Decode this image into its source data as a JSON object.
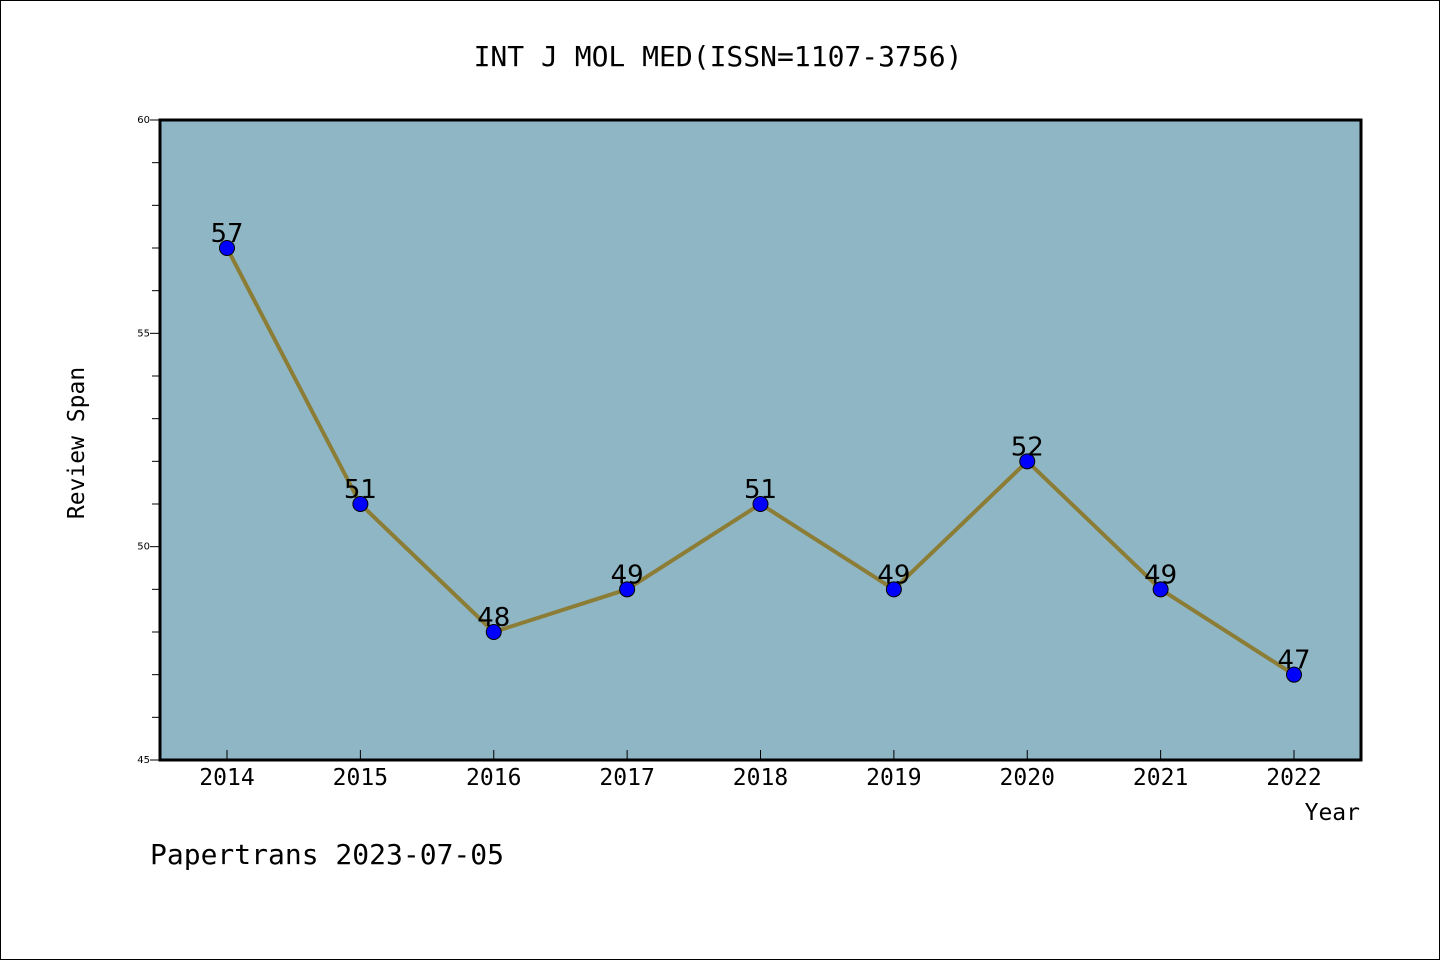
{
  "chart_data": {
    "type": "line",
    "title": "INT J MOL MED(ISSN=1107-3756)",
    "xlabel": "Year",
    "ylabel": "Review Span",
    "categories": [
      "2014",
      "2015",
      "2016",
      "2017",
      "2018",
      "2019",
      "2020",
      "2021",
      "2022"
    ],
    "values": [
      57,
      51,
      48,
      49,
      51,
      49,
      52,
      49,
      47
    ],
    "ylim": [
      45,
      60
    ],
    "yticks": [
      "45",
      "50",
      "55",
      "60"
    ],
    "grid": false,
    "legend": "none",
    "colors": {
      "plot_background": "#8fb6c5",
      "line": "#8c7d36",
      "marker": "#0000ff"
    }
  },
  "footer": {
    "credit": "Papertrans 2023-07-05"
  }
}
